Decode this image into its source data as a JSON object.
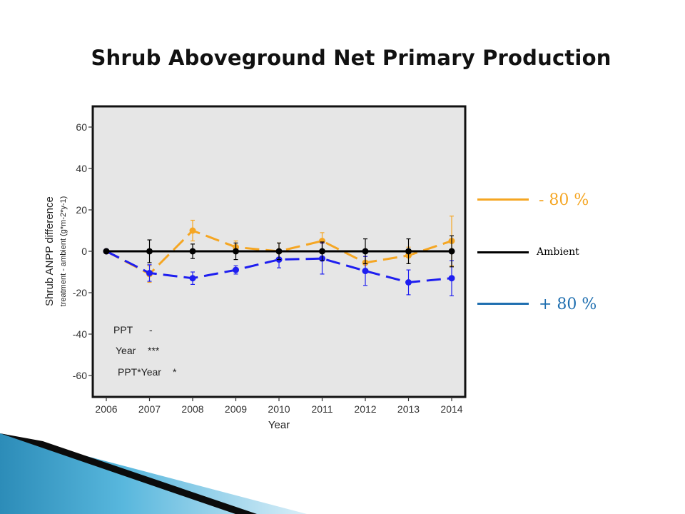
{
  "slide": {
    "title": "Shrub Aboveground Net Primary Production"
  },
  "legend": [
    {
      "label": "- 80 %",
      "color": "#F5A623"
    },
    {
      "label": "Ambient",
      "color": "#000000"
    },
    {
      "label": "+ 80 %",
      "color": "#1F6FB0"
    }
  ],
  "chart_data": {
    "type": "line",
    "xlabel": "Year",
    "ylabel": "Shrub ANPP difference",
    "ylabel_sub": "treatment - ambient (g*m-2*y-1)",
    "x": [
      2006,
      2007,
      2008,
      2009,
      2010,
      2011,
      2012,
      2013,
      2014
    ],
    "ylim": [
      -70,
      70
    ],
    "yticks": [
      -60,
      -40,
      -20,
      0,
      20,
      40,
      60
    ],
    "grid": false,
    "series": [
      {
        "color": "#F5A623",
        "dashed": true,
        "values": [
          0,
          -11,
          10,
          2,
          0,
          5,
          -5.5,
          -2,
          5
        ],
        "errors": [
          0,
          4,
          5,
          3,
          4,
          4,
          3,
          4,
          12
        ]
      },
      {
        "color": "#1E1EF0",
        "dashed": true,
        "values": [
          0,
          -10.5,
          -13,
          -9,
          -4,
          -3.5,
          -9.5,
          -15,
          -13
        ],
        "errors": [
          0,
          4,
          3,
          2,
          4,
          7.5,
          7,
          6,
          8.5
        ]
      },
      {
        "color": "#000000",
        "dashed": false,
        "values": [
          0,
          0,
          0,
          0,
          0,
          0,
          0,
          0,
          0
        ],
        "errors": [
          0,
          5.5,
          3.5,
          4,
          4,
          4.5,
          6,
          6,
          7.5
        ]
      }
    ],
    "annotations": [
      {
        "term": "PPT",
        "sig": "-"
      },
      {
        "term": "Year",
        "sig": "***"
      },
      {
        "term": "PPT*Year",
        "sig": "*"
      }
    ]
  }
}
